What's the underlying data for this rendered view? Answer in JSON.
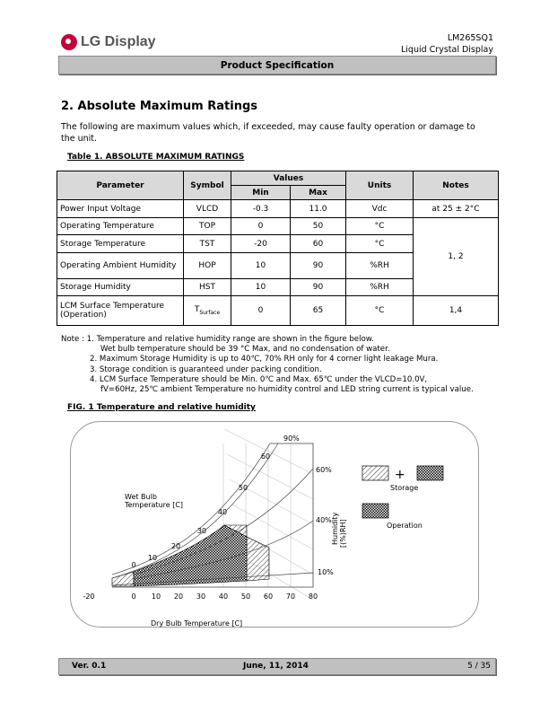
{
  "header": {
    "brand": "LG Display",
    "model": "LM265SQ1",
    "product": "Liquid Crystal Display",
    "bar_title": "Product Specification",
    "brand_color": "#c4003a"
  },
  "section": {
    "title": "2. Absolute Maximum Ratings",
    "intro": "The following are maximum values which, if exceeded, may cause faulty operation or damage to the unit."
  },
  "table": {
    "caption": "Table 1.  ABSOLUTE MAXIMUM RATINGS",
    "headers": {
      "parameter": "Parameter",
      "symbol": "Symbol",
      "values": "Values",
      "min": "Min",
      "max": "Max",
      "units": "Units",
      "notes": "Notes"
    },
    "rows": [
      {
        "parameter": "Power Input Voltage",
        "symbol": "VLCD",
        "min": "-0.3",
        "max": "11.0",
        "units": "Vdc",
        "notes": "at 25 ± 2°C"
      },
      {
        "parameter": "Operating Temperature",
        "symbol": "TOP",
        "min": "0",
        "max": "50",
        "units": "°C",
        "notes": "1, 2"
      },
      {
        "parameter": "Storage Temperature",
        "symbol": "TST",
        "min": "-20",
        "max": "60",
        "units": "°C"
      },
      {
        "parameter": "Operating Ambient Humidity",
        "symbol": "HOP",
        "min": "10",
        "max": "90",
        "units": "%RH"
      },
      {
        "parameter": "Storage Humidity",
        "symbol": "HST",
        "min": "10",
        "max": "90",
        "units": "%RH"
      },
      {
        "parameter": "LCM Surface Temperature (Operation)",
        "symbol": "T",
        "symbol_sub": "Surface",
        "min": "0",
        "max": "65",
        "units": "°C",
        "notes": "1,4"
      }
    ]
  },
  "notes": {
    "prefix": "Note : ",
    "n1": "1. Temperature and relative humidity range are shown in the figure below.",
    "n1b": "Wet bulb temperature should be 39 °C Max, and no condensation of water.",
    "n2": "2. Maximum Storage Humidity is up to 40℃, 70% RH only for 4 corner light leakage Mura.",
    "n3": "3. Storage condition is guaranteed under packing condition.",
    "n4": "4. LCM Surface Temperature should be Min. 0℃ and Max. 65℃ under the VLCD=10.0V,",
    "n4b": "fV=60Hz, 25℃ ambient Temperature no humidity control and LED string current is typical value."
  },
  "figure": {
    "caption": "FIG. 1 Temperature and relative humidity",
    "xlabel": "Dry Bulb Temperature [C]",
    "wet_label1": "Wet Bulb",
    "wet_label2": "Temperature [C]",
    "ylabel1": "Humidity",
    "ylabel2": "[(%)RH]",
    "x_ticks": [
      "-20",
      "0",
      "10",
      "20",
      "30",
      "40",
      "50",
      "60",
      "70",
      "80"
    ],
    "wet_ticks": [
      "0",
      "10",
      "20",
      "30",
      "40",
      "50",
      "60"
    ],
    "rh_labels": [
      "90%",
      "60%",
      "40%",
      "10%"
    ],
    "legend": {
      "storage": "Storage",
      "operation": "Operation",
      "plus": "+"
    }
  },
  "footer": {
    "version": "Ver. 0.1",
    "date": "June, 11, 2014",
    "page": "5 / 35"
  }
}
